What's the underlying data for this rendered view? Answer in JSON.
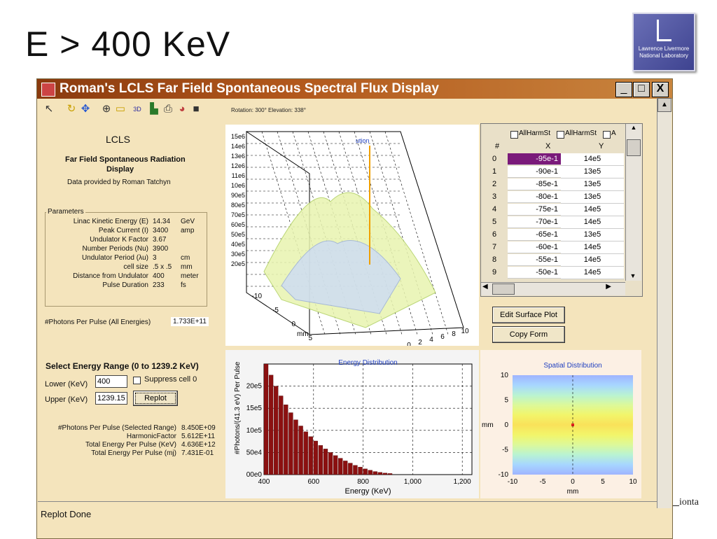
{
  "slide": {
    "title": "E > 400 KeV",
    "logo_text": "Lawrence Livermore National Laboratory",
    "corner_text": "ionta"
  },
  "window": {
    "title": "Roman's LCLS Far Field Spontaneous Spectral Flux Display",
    "min": "_",
    "max": "□",
    "close": "X"
  },
  "toolbar": {
    "rotation_text": "Rotation: 300° Elevation: 338°",
    "view3d": "3D"
  },
  "info": {
    "heading": "LCLS",
    "subtitle1": "Far Field Spontaneous Radiation",
    "subtitle2": "Display",
    "credit": "Data provided by Roman Tatchyn"
  },
  "params": {
    "legend": "Parameters",
    "rows": [
      {
        "label": "Linac Kinetic Energy (E)",
        "value": "14.34",
        "unit": "GeV"
      },
      {
        "label": "Peak Current   (I)",
        "value": "3400",
        "unit": "amp"
      },
      {
        "label": "Undulator K Factor",
        "value": "3.67",
        "unit": ""
      },
      {
        "label": "Number Periods  (Nu)",
        "value": "3900",
        "unit": ""
      },
      {
        "label": "Undulator Period  (λu)",
        "value": "3",
        "unit": "cm"
      },
      {
        "label": "cell size",
        "value": ".5 x .5",
        "unit": "mm"
      },
      {
        "label": "Distance from Undulator",
        "value": "400",
        "unit": "meter"
      },
      {
        "label": "Pulse Duration",
        "value": "233",
        "unit": "fs"
      }
    ]
  },
  "photons_all": {
    "label": "#Photons Per Pulse (All Energies)",
    "value": "1.733E+11"
  },
  "energy_range": {
    "heading": "Select Energy Range (0 to 1239.2 KeV)",
    "lower_label": "Lower (KeV)",
    "lower_value": "400",
    "upper_label": "Upper (KeV)",
    "upper_value": "1239.15",
    "suppress_label": "Suppress cell 0",
    "replot": "Replot"
  },
  "results": [
    {
      "label": "#Photons Per Pulse (Selected Range)",
      "value": "8.450E+09"
    },
    {
      "label": "HarmonicFactor",
      "value": "5.612E+11"
    },
    {
      "label": "Total Energy Per Pulse (KeV)",
      "value": "4.636E+12"
    },
    {
      "label": "Total Energy Per Pulse (mj)",
      "value": "7.431E-01"
    }
  ],
  "surface": {
    "title_fragment": "ution",
    "axis_label": "mm",
    "y_ticks": [
      "15e6",
      "14e6",
      "13e6",
      "12e6",
      "11e6",
      "10e6",
      "90e5",
      "80e5",
      "70e5",
      "60e5",
      "50e5",
      "40e5",
      "30e5",
      "20e5"
    ],
    "mm_ticks": [
      "-10",
      "-5",
      "0",
      "5"
    ],
    "x_ticks": [
      "0",
      "2",
      "4",
      "6",
      "8",
      "10"
    ]
  },
  "table": {
    "headers": [
      "AllHarmSt",
      "AllHarmSt",
      "A"
    ],
    "col_hash": "#",
    "col_x": "X",
    "col_y": "Y",
    "rows": [
      {
        "n": "0",
        "x": "-95e-1",
        "y": "14e5"
      },
      {
        "n": "1",
        "x": "-90e-1",
        "y": "13e5"
      },
      {
        "n": "2",
        "x": "-85e-1",
        "y": "13e5"
      },
      {
        "n": "3",
        "x": "-80e-1",
        "y": "13e5"
      },
      {
        "n": "4",
        "x": "-75e-1",
        "y": "14e5"
      },
      {
        "n": "5",
        "x": "-70e-1",
        "y": "14e5"
      },
      {
        "n": "6",
        "x": "-65e-1",
        "y": "13e5"
      },
      {
        "n": "7",
        "x": "-60e-1",
        "y": "14e5"
      },
      {
        "n": "8",
        "x": "-55e-1",
        "y": "14e5"
      },
      {
        "n": "9",
        "x": "-50e-1",
        "y": "14e5"
      }
    ]
  },
  "buttons": {
    "edit": "Edit Surface Plot",
    "copy": "Copy Form"
  },
  "status": {
    "text": "Replot Done"
  },
  "chart_data": [
    {
      "type": "bar",
      "title": "Energy Distribution",
      "xlabel": "Energy (KeV)",
      "ylabel": "#Photons/(41.3 eV) Per Pulse",
      "xlim": [
        400,
        1239
      ],
      "ylim": [
        0,
        250000
      ],
      "x_ticks": [
        "400",
        "600",
        "800",
        "1,000",
        "1,200"
      ],
      "x_tick_values": [
        400,
        600,
        800,
        1000,
        1200
      ],
      "y_ticks": [
        "00e0",
        "50e4",
        "10e5",
        "15e5",
        "20e5"
      ],
      "y_tick_values": [
        0,
        50000,
        100000,
        150000,
        200000
      ],
      "grid": true,
      "color": "#8b1010",
      "x": [
        400,
        420,
        440,
        460,
        480,
        500,
        520,
        540,
        560,
        580,
        600,
        620,
        640,
        660,
        680,
        700,
        720,
        740,
        760,
        780,
        800,
        820,
        840,
        860,
        880,
        900
      ],
      "values": [
        250000,
        225000,
        200000,
        178000,
        158000,
        140000,
        124000,
        110000,
        97000,
        86000,
        76000,
        66000,
        58000,
        50000,
        43000,
        37000,
        31000,
        26000,
        21000,
        17000,
        13000,
        10000,
        7000,
        5000,
        3500,
        2500
      ]
    },
    {
      "type": "heatmap",
      "title": "Spatial Distribution",
      "xlabel": "mm",
      "ylabel": "mm",
      "xlim": [
        -10,
        10
      ],
      "ylim": [
        -10,
        10
      ],
      "x_ticks": [
        "-10",
        "-5",
        "0",
        "5",
        "10"
      ],
      "y_ticks": [
        "10",
        "5",
        "0",
        "-5",
        "-10"
      ],
      "colors": [
        "#9fb4ff",
        "#a7d6ff",
        "#b9f3d2",
        "#dcf99a",
        "#f2f56a",
        "#f9e25a"
      ],
      "peak_color": "#e02020"
    }
  ]
}
